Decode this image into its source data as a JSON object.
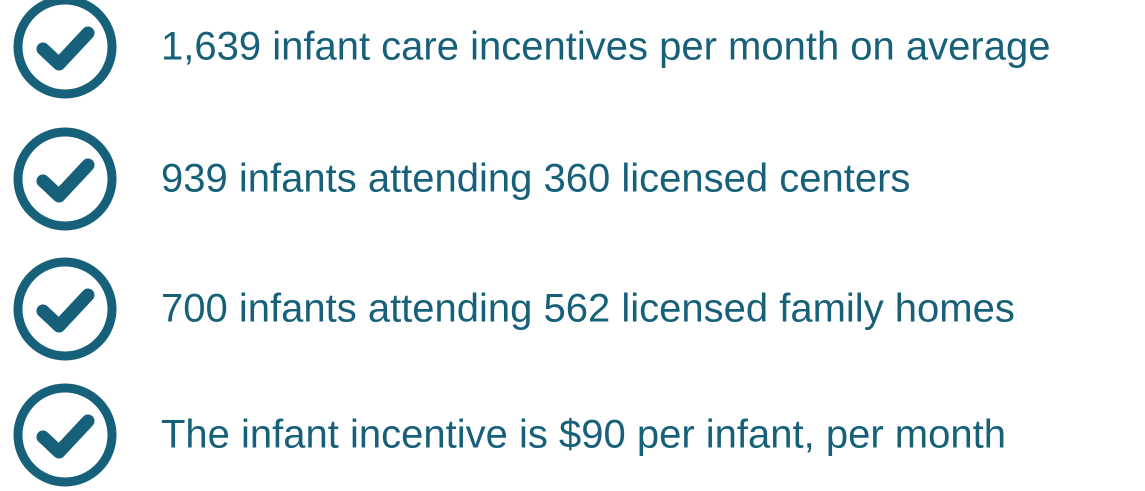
{
  "items": [
    {
      "text": "1,639 infant care incentives per month on average"
    },
    {
      "text": "939 infants attending 360 licensed centers"
    },
    {
      "text": "700 infants attending 562 licensed family homes"
    },
    {
      "text": "The infant incentive is $90 per infant, per month"
    }
  ]
}
